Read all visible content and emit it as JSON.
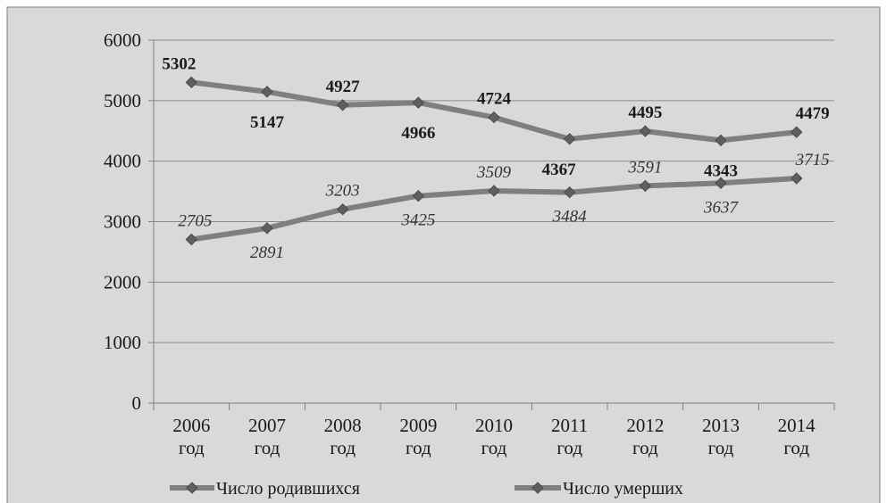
{
  "chart_data": {
    "type": "line",
    "categories": [
      [
        "2006",
        "год"
      ],
      [
        "2007",
        "год"
      ],
      [
        "2008",
        "год"
      ],
      [
        "2009",
        "год"
      ],
      [
        "2010",
        "год"
      ],
      [
        "2011",
        "год"
      ],
      [
        "2012",
        "год"
      ],
      [
        "2013",
        "год"
      ],
      [
        "2014",
        "год"
      ]
    ],
    "series": [
      {
        "name": "Число родившихся",
        "values": [
          5302,
          5147,
          4927,
          4966,
          4724,
          4367,
          4495,
          4343,
          4479
        ],
        "label_style": "bold"
      },
      {
        "name": "Число умерших",
        "values": [
          2705,
          2891,
          3203,
          3425,
          3509,
          3484,
          3591,
          3637,
          3715
        ],
        "label_style": "italic"
      }
    ],
    "y_ticks": [
      "0",
      "1000",
      "2000",
      "3000",
      "4000",
      "5000",
      "6000"
    ],
    "ylim": [
      0,
      6000
    ],
    "grid": true,
    "legend_position": "bottom",
    "colors": {
      "line": "#7f7f7f",
      "marker": "#5f5f5f",
      "background": "#d9d9d9"
    }
  }
}
